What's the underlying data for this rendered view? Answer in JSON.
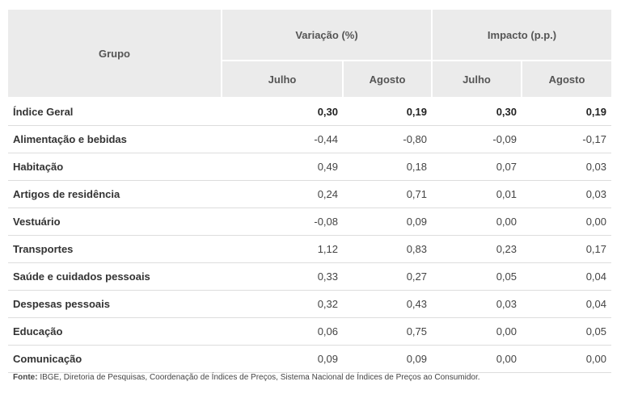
{
  "headers": {
    "grupo": "Grupo",
    "variacao": "Variação (%)",
    "impacto": "Impacto (p.p.)",
    "julho": "Julho",
    "agosto": "Agosto"
  },
  "rows": [
    {
      "name": "Índice Geral",
      "var_jul": "0,30",
      "var_ago": "0,19",
      "imp_jul": "0,30",
      "imp_ago": "0,19"
    },
    {
      "name": "Alimentação e bebidas",
      "var_jul": "-0,44",
      "var_ago": "-0,80",
      "imp_jul": "-0,09",
      "imp_ago": "-0,17"
    },
    {
      "name": "Habitação",
      "var_jul": "0,49",
      "var_ago": "0,18",
      "imp_jul": "0,07",
      "imp_ago": "0,03"
    },
    {
      "name": "Artigos de residência",
      "var_jul": "0,24",
      "var_ago": "0,71",
      "imp_jul": "0,01",
      "imp_ago": "0,03"
    },
    {
      "name": "Vestuário",
      "var_jul": "-0,08",
      "var_ago": "0,09",
      "imp_jul": "0,00",
      "imp_ago": "0,00"
    },
    {
      "name": "Transportes",
      "var_jul": "1,12",
      "var_ago": "0,83",
      "imp_jul": "0,23",
      "imp_ago": "0,17"
    },
    {
      "name": "Saúde e cuidados pessoais",
      "var_jul": "0,33",
      "var_ago": "0,27",
      "imp_jul": "0,05",
      "imp_ago": "0,04"
    },
    {
      "name": "Despesas pessoais",
      "var_jul": "0,32",
      "var_ago": "0,43",
      "imp_jul": "0,03",
      "imp_ago": "0,04"
    },
    {
      "name": "Educação",
      "var_jul": "0,06",
      "var_ago": "0,75",
      "imp_jul": "0,00",
      "imp_ago": "0,05"
    },
    {
      "name": "Comunicação",
      "var_jul": "0,09",
      "var_ago": "0,09",
      "imp_jul": "0,00",
      "imp_ago": "0,00"
    }
  ],
  "footer": {
    "label": "Fonte:",
    "text": " IBGE, Diretoria de Pesquisas, Coordenação de Índices de Preços, Sistema Nacional de Índices de Preços ao Consumidor."
  },
  "colors": {
    "header_bg": "#ebebeb",
    "row_border": "#dddddd"
  }
}
